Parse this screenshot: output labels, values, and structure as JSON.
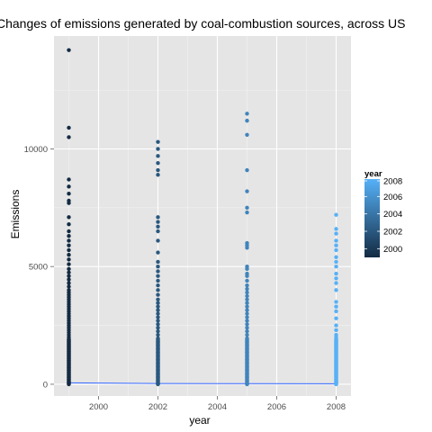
{
  "chart_data": {
    "type": "scatter",
    "title": "Changes of emissions generated by coal-combustion sources, across US",
    "xlabel": "year",
    "ylabel": "Emissions",
    "xlim": [
      1998.5,
      2008.5
    ],
    "ylim": [
      -500,
      14800
    ],
    "x_ticks": [
      2000,
      2002,
      2004,
      2006,
      2008
    ],
    "y_ticks": [
      0,
      5000,
      10000
    ],
    "grid": true,
    "legend": {
      "title": "year",
      "position": "right",
      "breaks": [
        2008,
        2006,
        2004,
        2002,
        2000
      ],
      "range": [
        1999,
        2008
      ],
      "color_low": "#132B43",
      "color_high": "#56B1F7"
    },
    "colors": {
      "panel": "#e5e5e5",
      "grid_major": "#ffffff",
      "grid_minor": "#f2f2f2",
      "trend_line": "#3366ff"
    },
    "series": [
      {
        "x": 1999,
        "values": [
          14200,
          10900,
          10500,
          8700,
          8400,
          8100,
          7800,
          7700,
          7100,
          6800,
          6500,
          6300,
          6100,
          5900,
          5700,
          5500,
          5300,
          5100,
          4900,
          4750,
          4600,
          4450,
          4300,
          4150,
          4000,
          3900,
          3800,
          3700,
          3600,
          3500,
          3400,
          3300,
          3200,
          3100,
          3000,
          2900,
          2800,
          2700,
          2600,
          2500,
          2400,
          2300,
          2200,
          2100,
          2000,
          1900,
          1800,
          1700,
          1600,
          1500,
          1400,
          1300,
          1200,
          1100,
          1000,
          900,
          800,
          700,
          600,
          500,
          400,
          300,
          200,
          100,
          50,
          0
        ]
      },
      {
        "x": 2002,
        "values": [
          10300,
          10000,
          9700,
          9400,
          9100,
          8900,
          7100,
          6900,
          6700,
          6500,
          6100,
          5600,
          5200,
          5000,
          4800,
          4600,
          4400,
          4200,
          4000,
          3800,
          3600,
          3450,
          3300,
          3150,
          3000,
          2850,
          2700,
          2550,
          2400,
          2250,
          2100,
          1950,
          1800,
          1650,
          1500,
          1350,
          1200,
          1050,
          900,
          750,
          600,
          450,
          300,
          150,
          50,
          0
        ]
      },
      {
        "x": 2005,
        "values": [
          11500,
          11200,
          10600,
          9100,
          8200,
          7500,
          7300,
          6000,
          5900,
          5800,
          5000,
          4900,
          4700,
          4600,
          4400,
          4200,
          4050,
          3900,
          3750,
          3600,
          3450,
          3300,
          3150,
          3000,
          2850,
          2700,
          2550,
          2400,
          2250,
          2100,
          1950,
          1800,
          1650,
          1500,
          1350,
          1200,
          1050,
          900,
          750,
          600,
          450,
          300,
          150,
          50,
          0
        ]
      },
      {
        "x": 2008,
        "values": [
          7200,
          6600,
          6400,
          6100,
          5900,
          5700,
          5400,
          5200,
          5000,
          4700,
          4500,
          4300,
          4000,
          3500,
          3300,
          3100,
          2800,
          2500,
          2300,
          2100,
          2000,
          1900,
          1800,
          1700,
          1600,
          1500,
          1400,
          1300,
          1200,
          1100,
          1000,
          900,
          800,
          700,
          600,
          500,
          400,
          300,
          200,
          100,
          50,
          0
        ]
      }
    ],
    "trend": {
      "type": "line",
      "x": [
        1999,
        2002,
        2005,
        2008
      ],
      "values": [
        60,
        30,
        25,
        20
      ]
    }
  }
}
